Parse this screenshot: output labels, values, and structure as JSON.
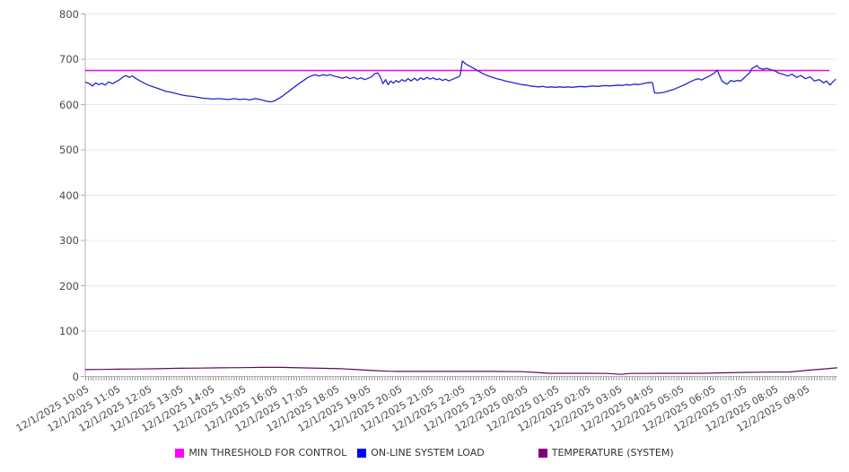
{
  "background": "#ffffff",
  "chart_data": {
    "type": "line",
    "title": "",
    "xlabel": "",
    "ylabel": "",
    "grid": true,
    "legend_position": "bottom",
    "x_axis": {
      "unit": "minutes from 12/1/2025 10:05",
      "range_minutes": [
        0,
        1440
      ],
      "minor_tick_interval_minutes": 5,
      "hour_labels": [
        "12/1/2025 10:05",
        "12/1/2025 11:05",
        "12/1/2025 12:05",
        "12/1/2025 13:05",
        "12/1/2025 14:05",
        "12/1/2025 15:05",
        "12/1/2025 16:05",
        "12/1/2025 17:05",
        "12/1/2025 18:05",
        "12/1/2025 19:05",
        "12/1/2025 20:05",
        "12/1/2025 21:05",
        "12/1/2025 22:05",
        "12/1/2025 23:05",
        "12/2/2025 00:05",
        "12/2/2025 01:05",
        "12/2/2025 02:05",
        "12/2/2025 03:05",
        "12/2/2025 04:05",
        "12/2/2025 05:05",
        "12/2/2025 06:05",
        "12/2/2025 07:05",
        "12/2/2025 08:05",
        "12/2/2025 09:05"
      ]
    },
    "y_axis": {
      "min": 0,
      "max": 800,
      "tick_step": 100,
      "ticks": [
        0,
        100,
        200,
        300,
        400,
        500,
        600,
        700,
        800
      ]
    },
    "series": [
      {
        "name": "MIN THRESHOLD FOR CONTROL",
        "color": "#e811e8",
        "swatch": "#ff00ff",
        "width": 1.6,
        "points": [
          [
            0,
            675
          ],
          [
            1425,
            675
          ]
        ]
      },
      {
        "name": "ON-LINE SYSTEM LOAD",
        "color": "#2424cc",
        "swatch": "#0000ff",
        "width": 1.3,
        "points": [
          [
            0,
            650
          ],
          [
            8,
            646
          ],
          [
            14,
            641
          ],
          [
            20,
            648
          ],
          [
            26,
            644
          ],
          [
            32,
            647
          ],
          [
            38,
            643
          ],
          [
            45,
            650
          ],
          [
            52,
            646
          ],
          [
            60,
            651
          ],
          [
            66,
            655
          ],
          [
            72,
            661
          ],
          [
            78,
            664
          ],
          [
            84,
            660
          ],
          [
            90,
            663
          ],
          [
            96,
            658
          ],
          [
            105,
            652
          ],
          [
            115,
            646
          ],
          [
            125,
            641
          ],
          [
            135,
            637
          ],
          [
            145,
            633
          ],
          [
            155,
            629
          ],
          [
            165,
            627
          ],
          [
            175,
            624
          ],
          [
            185,
            621
          ],
          [
            195,
            619
          ],
          [
            205,
            618
          ],
          [
            215,
            616
          ],
          [
            225,
            614
          ],
          [
            235,
            613
          ],
          [
            245,
            612
          ],
          [
            255,
            613
          ],
          [
            265,
            612
          ],
          [
            275,
            611
          ],
          [
            285,
            613
          ],
          [
            295,
            611
          ],
          [
            305,
            612
          ],
          [
            315,
            610
          ],
          [
            325,
            613
          ],
          [
            335,
            611
          ],
          [
            345,
            608
          ],
          [
            355,
            606
          ],
          [
            362,
            608
          ],
          [
            370,
            613
          ],
          [
            378,
            619
          ],
          [
            386,
            626
          ],
          [
            394,
            633
          ],
          [
            402,
            640
          ],
          [
            410,
            647
          ],
          [
            418,
            653
          ],
          [
            425,
            659
          ],
          [
            432,
            663
          ],
          [
            440,
            666
          ],
          [
            448,
            663
          ],
          [
            455,
            666
          ],
          [
            462,
            664
          ],
          [
            469,
            666
          ],
          [
            476,
            663
          ],
          [
            484,
            661
          ],
          [
            492,
            658
          ],
          [
            500,
            661
          ],
          [
            507,
            657
          ],
          [
            514,
            660
          ],
          [
            521,
            656
          ],
          [
            528,
            659
          ],
          [
            535,
            655
          ],
          [
            542,
            658
          ],
          [
            548,
            661
          ],
          [
            554,
            668
          ],
          [
            560,
            670
          ],
          [
            565,
            661
          ],
          [
            570,
            646
          ],
          [
            575,
            655
          ],
          [
            580,
            644
          ],
          [
            585,
            652
          ],
          [
            590,
            647
          ],
          [
            595,
            653
          ],
          [
            600,
            649
          ],
          [
            606,
            655
          ],
          [
            612,
            651
          ],
          [
            618,
            657
          ],
          [
            624,
            652
          ],
          [
            630,
            658
          ],
          [
            636,
            653
          ],
          [
            642,
            659
          ],
          [
            648,
            655
          ],
          [
            654,
            660
          ],
          [
            660,
            656
          ],
          [
            666,
            659
          ],
          [
            672,
            655
          ],
          [
            678,
            657
          ],
          [
            684,
            653
          ],
          [
            690,
            656
          ],
          [
            696,
            652
          ],
          [
            702,
            655
          ],
          [
            708,
            658
          ],
          [
            714,
            661
          ],
          [
            718,
            665
          ],
          [
            722,
            696
          ],
          [
            727,
            691
          ],
          [
            732,
            687
          ],
          [
            737,
            684
          ],
          [
            742,
            681
          ],
          [
            748,
            677
          ],
          [
            754,
            673
          ],
          [
            760,
            669
          ],
          [
            766,
            666
          ],
          [
            772,
            663
          ],
          [
            780,
            660
          ],
          [
            788,
            657
          ],
          [
            796,
            655
          ],
          [
            804,
            652
          ],
          [
            812,
            650
          ],
          [
            820,
            648
          ],
          [
            828,
            646
          ],
          [
            836,
            644
          ],
          [
            844,
            643
          ],
          [
            852,
            641
          ],
          [
            860,
            640
          ],
          [
            868,
            639
          ],
          [
            876,
            640
          ],
          [
            884,
            638
          ],
          [
            892,
            639
          ],
          [
            900,
            638
          ],
          [
            908,
            639
          ],
          [
            916,
            638
          ],
          [
            924,
            639
          ],
          [
            932,
            638
          ],
          [
            940,
            639
          ],
          [
            948,
            640
          ],
          [
            956,
            639
          ],
          [
            964,
            640
          ],
          [
            972,
            641
          ],
          [
            980,
            640
          ],
          [
            988,
            641
          ],
          [
            996,
            642
          ],
          [
            1004,
            641
          ],
          [
            1012,
            642
          ],
          [
            1020,
            643
          ],
          [
            1028,
            642
          ],
          [
            1036,
            644
          ],
          [
            1044,
            643
          ],
          [
            1052,
            645
          ],
          [
            1060,
            644
          ],
          [
            1068,
            646
          ],
          [
            1076,
            648
          ],
          [
            1082,
            649
          ],
          [
            1086,
            648
          ],
          [
            1090,
            626
          ],
          [
            1096,
            625
          ],
          [
            1102,
            626
          ],
          [
            1108,
            627
          ],
          [
            1114,
            629
          ],
          [
            1120,
            631
          ],
          [
            1126,
            633
          ],
          [
            1132,
            636
          ],
          [
            1138,
            639
          ],
          [
            1144,
            642
          ],
          [
            1150,
            645
          ],
          [
            1156,
            649
          ],
          [
            1162,
            652
          ],
          [
            1168,
            655
          ],
          [
            1174,
            657
          ],
          [
            1180,
            654
          ],
          [
            1186,
            658
          ],
          [
            1192,
            661
          ],
          [
            1198,
            665
          ],
          [
            1204,
            669
          ],
          [
            1210,
            676
          ],
          [
            1214,
            665
          ],
          [
            1219,
            652
          ],
          [
            1224,
            648
          ],
          [
            1229,
            645
          ],
          [
            1236,
            653
          ],
          [
            1242,
            651
          ],
          [
            1248,
            653
          ],
          [
            1255,
            652
          ],
          [
            1261,
            658
          ],
          [
            1267,
            665
          ],
          [
            1272,
            670
          ],
          [
            1277,
            680
          ],
          [
            1282,
            683
          ],
          [
            1286,
            686
          ],
          [
            1291,
            680
          ],
          [
            1298,
            678
          ],
          [
            1305,
            680
          ],
          [
            1312,
            677
          ],
          [
            1319,
            675
          ],
          [
            1327,
            670
          ],
          [
            1336,
            667
          ],
          [
            1345,
            663
          ],
          [
            1353,
            667
          ],
          [
            1362,
            660
          ],
          [
            1370,
            664
          ],
          [
            1379,
            657
          ],
          [
            1388,
            661
          ],
          [
            1396,
            652
          ],
          [
            1405,
            655
          ],
          [
            1414,
            648
          ],
          [
            1419,
            652
          ],
          [
            1426,
            643
          ],
          [
            1431,
            650
          ],
          [
            1437,
            656
          ]
        ]
      },
      {
        "name": "TEMPERATURE (SYSTEM)",
        "color": "#5c0a5c",
        "swatch": "#800080",
        "width": 1.2,
        "points": [
          [
            0,
            15
          ],
          [
            30,
            15.5
          ],
          [
            60,
            16
          ],
          [
            100,
            16.5
          ],
          [
            140,
            17
          ],
          [
            180,
            18
          ],
          [
            220,
            18.5
          ],
          [
            260,
            19
          ],
          [
            300,
            19.5
          ],
          [
            340,
            20
          ],
          [
            375,
            20
          ],
          [
            410,
            19
          ],
          [
            450,
            18
          ],
          [
            490,
            17
          ],
          [
            520,
            15
          ],
          [
            550,
            13
          ],
          [
            580,
            11.5
          ],
          [
            600,
            11
          ],
          [
            700,
            11
          ],
          [
            780,
            11
          ],
          [
            836,
            10.5
          ],
          [
            862,
            9
          ],
          [
            888,
            7
          ],
          [
            960,
            7
          ],
          [
            1000,
            6.5
          ],
          [
            1026,
            4.5
          ],
          [
            1043,
            6.5
          ],
          [
            1100,
            7
          ],
          [
            1180,
            7
          ],
          [
            1262,
            9
          ],
          [
            1300,
            9.5
          ],
          [
            1348,
            10
          ],
          [
            1370,
            12
          ],
          [
            1388,
            14
          ],
          [
            1410,
            16
          ],
          [
            1440,
            19
          ]
        ]
      }
    ],
    "colors": {
      "gridline": "#e8e8e8",
      "axis": "#b0b0b0",
      "tick_label": "#4a4a4a",
      "legend_text": "#333333"
    }
  }
}
